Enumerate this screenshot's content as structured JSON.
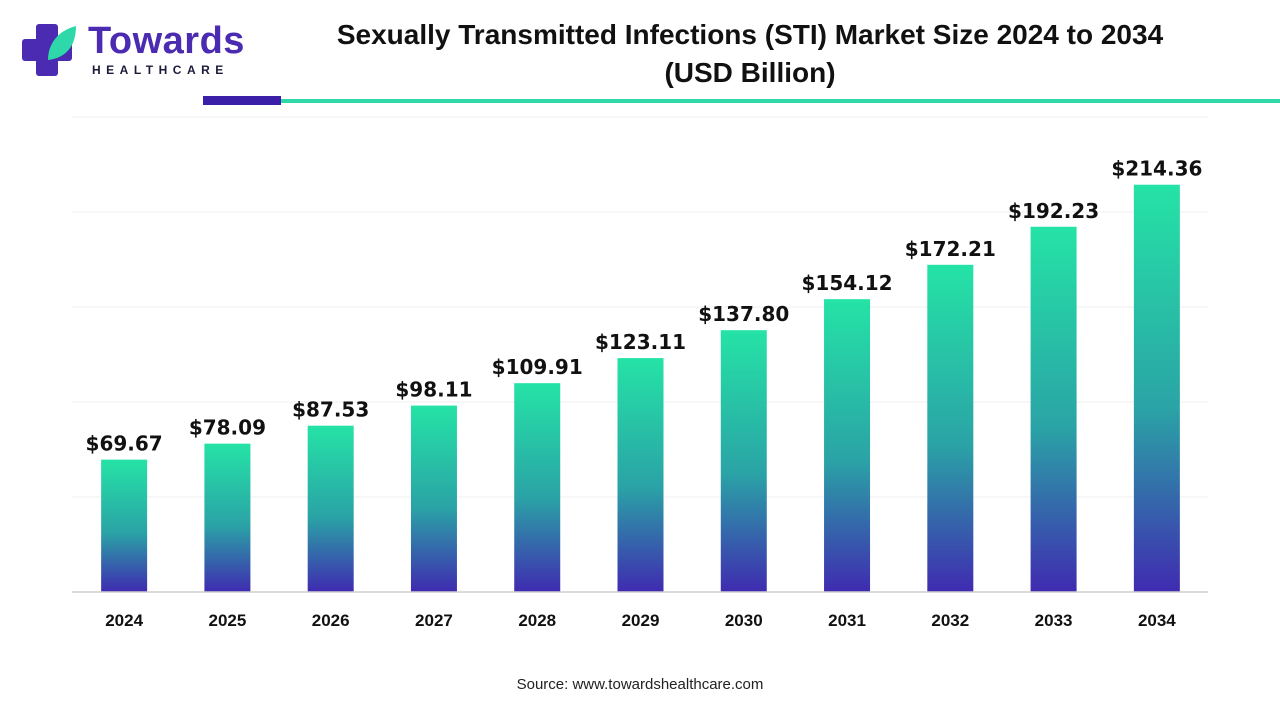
{
  "brand": {
    "name": "Towards",
    "sub": "HEALTHCARE"
  },
  "title_line1": "Sexually Transmitted Infections (STI) Market Size 2024 to 2034",
  "title_line2": "(USD Billion)",
  "source": "Source: www.towardshealthcare.com",
  "colors": {
    "bar_top": "#25e3a6",
    "bar_mid": "#2aa3a6",
    "bar_bottom": "#3f2bb0",
    "accent_purple": "#3b1fa8",
    "accent_green": "#2ed8a8"
  },
  "chart_data": {
    "type": "bar",
    "categories": [
      "2024",
      "2025",
      "2026",
      "2027",
      "2028",
      "2029",
      "2030",
      "2031",
      "2032",
      "2033",
      "2034"
    ],
    "values": [
      69.67,
      78.09,
      87.53,
      98.11,
      109.91,
      123.11,
      137.8,
      154.12,
      172.21,
      192.23,
      214.36
    ],
    "data_labels": [
      "$69.67",
      "$78.09",
      "$87.53",
      "$98.11",
      "$109.91",
      "$123.11",
      "$137.80",
      "$154.12",
      "$172.21",
      "$192.23",
      "$214.36"
    ],
    "title": "Sexually Transmitted Infections (STI) Market Size 2024 to 2034 (USD Billion)",
    "xlabel": "",
    "ylabel": "",
    "ylim": [
      0,
      250
    ],
    "grid": true,
    "legend": "none"
  }
}
